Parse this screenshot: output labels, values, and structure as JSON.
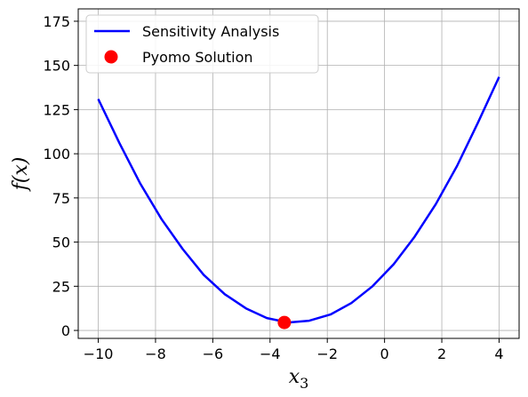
{
  "chart_data": {
    "type": "line",
    "title": "",
    "xlabel": "x_3",
    "ylabel": "f(x)",
    "xlim": [
      -10.7,
      4.7
    ],
    "ylim": [
      -4.5,
      182
    ],
    "grid": true,
    "legend_position": "top-left",
    "x_ticks": [
      -10,
      -8,
      -6,
      -4,
      -2,
      0,
      2,
      4
    ],
    "x_tick_labels": [
      "−10",
      "−8",
      "−6",
      "−4",
      "−2",
      "0",
      "2",
      "4"
    ],
    "y_ticks": [
      0,
      25,
      50,
      75,
      100,
      125,
      150,
      175
    ],
    "y_tick_labels": [
      "0",
      "25",
      "50",
      "75",
      "100",
      "125",
      "150",
      "175"
    ],
    "series": [
      {
        "name": "Sensitivity Analysis",
        "kind": "line",
        "color": "#0000ff",
        "x": [
          -10.0,
          -9.26,
          -8.53,
          -7.79,
          -7.05,
          -6.32,
          -5.58,
          -4.84,
          -4.11,
          -3.37,
          -2.63,
          -1.89,
          -1.16,
          -0.42,
          0.32,
          1.05,
          1.79,
          2.53,
          3.26,
          4.0
        ],
        "y": [
          131,
          106,
          83,
          63,
          46,
          31.5,
          20.5,
          12.5,
          7,
          4.5,
          5.5,
          9,
          15.5,
          25,
          37.5,
          53,
          71.5,
          93,
          117.5,
          143.5
        ]
      },
      {
        "name": "Pyomo Solution",
        "kind": "point",
        "color": "#ff0000",
        "x": [
          -3.5
        ],
        "y": [
          4.5
        ]
      }
    ]
  }
}
